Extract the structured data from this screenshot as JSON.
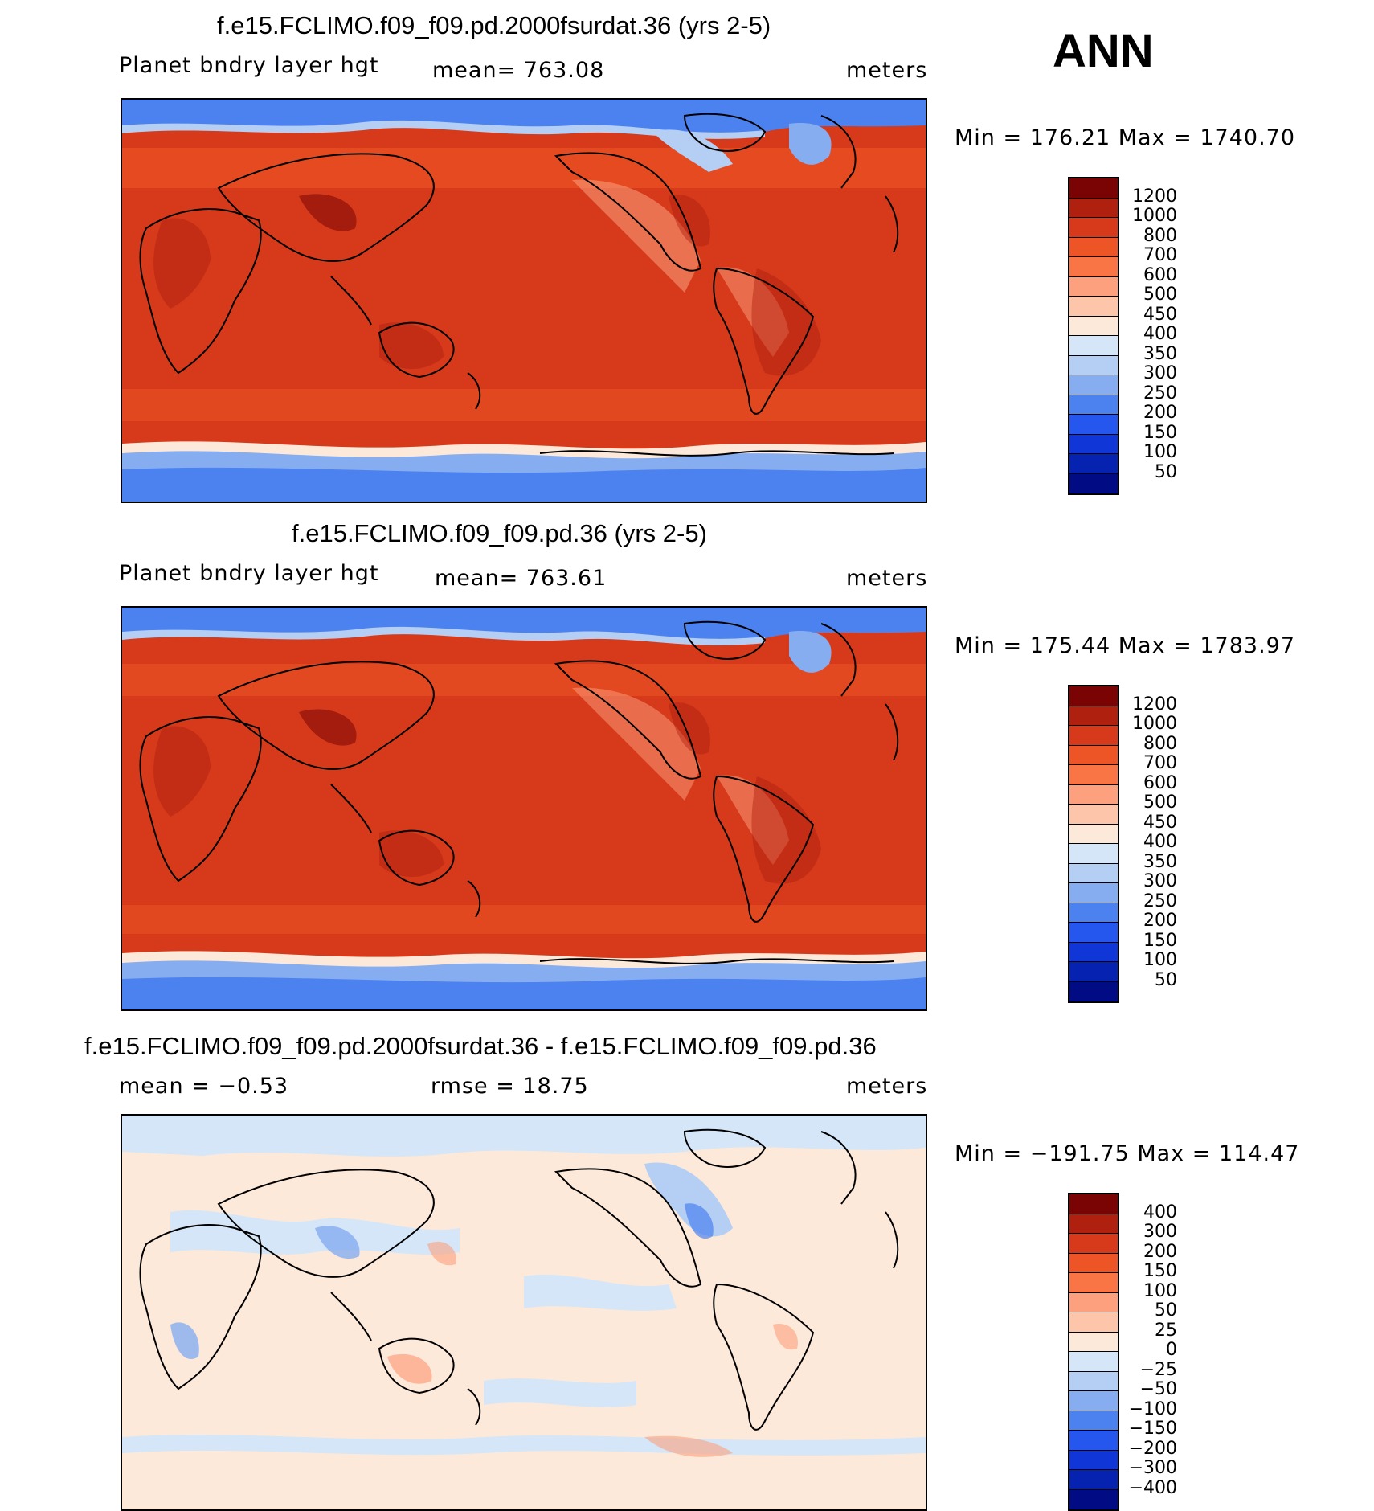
{
  "season": "ANN",
  "panels": [
    {
      "title": "f.e15.FCLIMO.f09_f09.pd.2000fsurdat.36 (yrs 2-5)",
      "left_label": "Planet bndry layer hgt",
      "center_label": "mean=  763.08",
      "right_label": "meters",
      "minmax": "Min  =  176.21  Max  =  1740.70",
      "kind": "field"
    },
    {
      "title": "f.e15.FCLIMO.f09_f09.pd.36 (yrs 2-5)",
      "left_label": "Planet bndry layer hgt",
      "center_label": "mean=  763.61",
      "right_label": "meters",
      "minmax": "Min  =  175.44  Max  =  1783.97",
      "kind": "field"
    },
    {
      "title": "f.e15.FCLIMO.f09_f09.pd.2000fsurdat.36 - f.e15.FCLIMO.f09_f09.pd.36",
      "left_label": "mean =    −0.53",
      "center_label": "rmse =    18.75",
      "right_label": "meters",
      "minmax": "Min  =  −191.75  Max  =  114.47",
      "kind": "diff"
    }
  ],
  "colorbars": {
    "field": {
      "labels": [
        "1200",
        "1000",
        "800",
        "700",
        "600",
        "500",
        "450",
        "400",
        "350",
        "300",
        "250",
        "200",
        "150",
        "100",
        "50"
      ],
      "colors": [
        "#7a0403",
        "#b0200f",
        "#d63a1b",
        "#ee5526",
        "#f97546",
        "#fca07d",
        "#fdc6ab",
        "#fde9d9",
        "#d4e6f8",
        "#b4cff3",
        "#86adf0",
        "#4c82ef",
        "#2557ee",
        "#1036d8",
        "#0522b0",
        "#010c84"
      ]
    },
    "diff": {
      "labels": [
        "400",
        "300",
        "200",
        "150",
        "100",
        "50",
        "25",
        "0",
        "−25",
        "−50",
        "−100",
        "−150",
        "−200",
        "−300",
        "−400"
      ],
      "colors": [
        "#7a0403",
        "#b0200f",
        "#d63a1b",
        "#ee5526",
        "#f97546",
        "#fca07d",
        "#fdc6ab",
        "#fde9d9",
        "#d4e6f8",
        "#b4cff3",
        "#86adf0",
        "#4c82ef",
        "#2557ee",
        "#1036d8",
        "#0522b0",
        "#010c84"
      ]
    }
  }
}
